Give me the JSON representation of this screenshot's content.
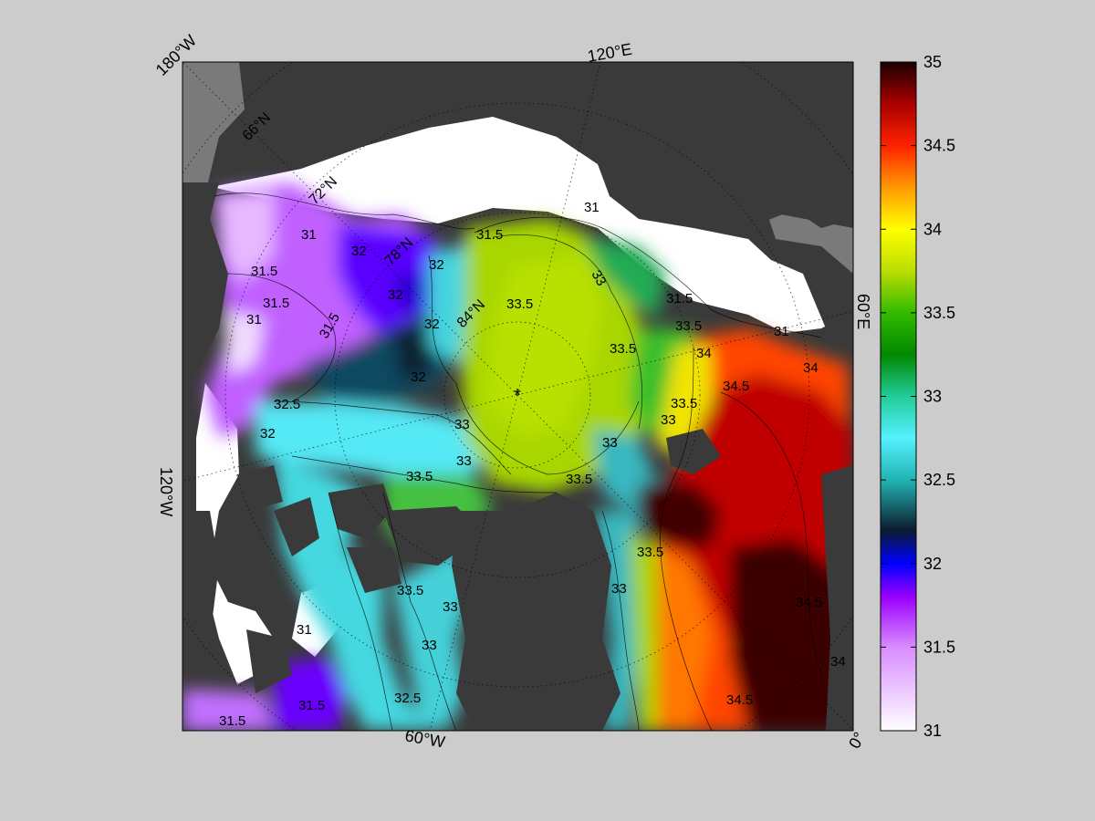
{
  "map": {
    "projection": "north polar stereographic",
    "center_marker": "*",
    "meridian_labels": [
      "180°W",
      "120°E",
      "60°E",
      "0°",
      "60°W",
      "120°W"
    ],
    "parallel_labels": [
      "66°N",
      "72°N",
      "78°N",
      "84°N"
    ],
    "contour_labels": [
      "31",
      "31.5",
      "32",
      "32.5",
      "33",
      "33.5",
      "34",
      "34.5"
    ],
    "colors": {
      "background": "#cccccc",
      "land": "#3a3a3a",
      "ice_white": "#ffffff",
      "coast_gray": "#7a7a7a"
    }
  },
  "colorbar": {
    "min": 31,
    "max": 35,
    "ticks": [
      "31",
      "31.5",
      "32",
      "32.5",
      "33",
      "33.5",
      "34",
      "34.5",
      "35"
    ],
    "stops": [
      {
        "v": 31.0,
        "c": "#ffffff"
      },
      {
        "v": 31.5,
        "c": "#d88cff"
      },
      {
        "v": 31.8,
        "c": "#9a00ff"
      },
      {
        "v": 32.0,
        "c": "#0000ff"
      },
      {
        "v": 32.2,
        "c": "#0c1c2e"
      },
      {
        "v": 32.5,
        "c": "#22b3b3"
      },
      {
        "v": 32.75,
        "c": "#55f0ff"
      },
      {
        "v": 33.0,
        "c": "#22cc99"
      },
      {
        "v": 33.25,
        "c": "#008800"
      },
      {
        "v": 33.5,
        "c": "#33bb00"
      },
      {
        "v": 33.75,
        "c": "#bbdd00"
      },
      {
        "v": 34.0,
        "c": "#ffff00"
      },
      {
        "v": 34.25,
        "c": "#ff9900"
      },
      {
        "v": 34.5,
        "c": "#ff2200"
      },
      {
        "v": 34.75,
        "c": "#aa0000"
      },
      {
        "v": 35.0,
        "c": "#1a0000"
      }
    ]
  }
}
